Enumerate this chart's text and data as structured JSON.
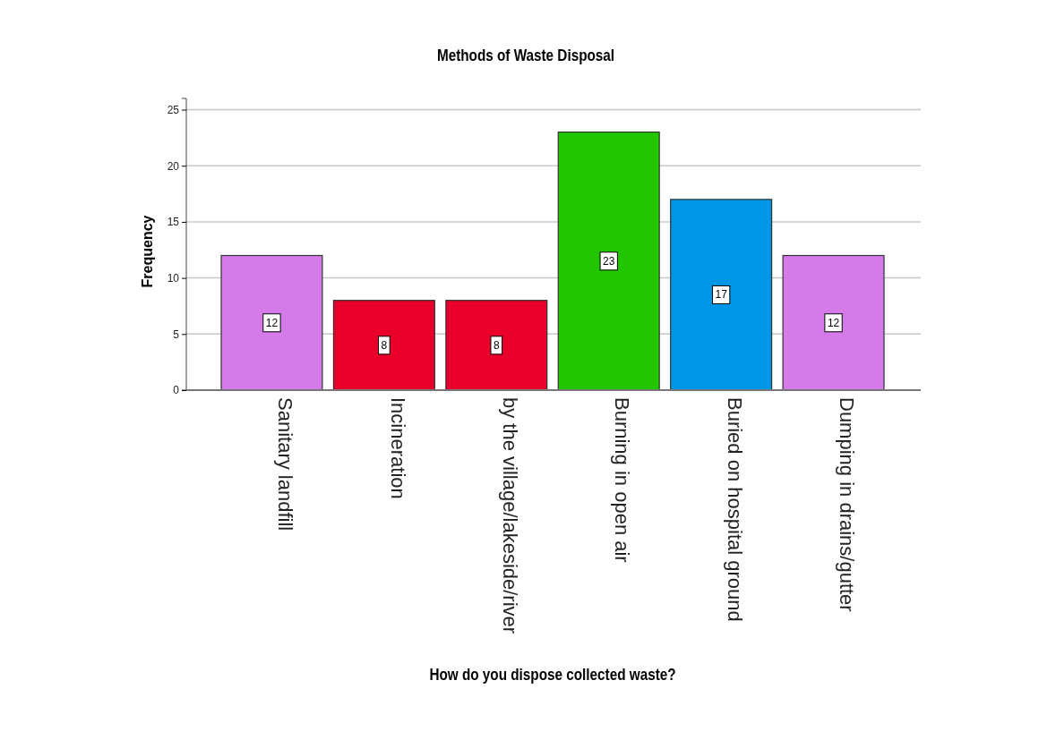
{
  "chart_data": {
    "type": "bar",
    "title": "Methods of Waste Disposal",
    "xlabel": "How do you dispose collected waste?",
    "ylabel": "Frequency",
    "categories": [
      "Sanitary landfill",
      "Incineration",
      "by the village/lakeside/river",
      "Burning in open air",
      "Buried on hospital ground",
      "Dumping in drains/gutter"
    ],
    "values": [
      12,
      8,
      8,
      23,
      17,
      12
    ],
    "colors": [
      "#d57be9",
      "#e8002a",
      "#e8002a",
      "#22c600",
      "#0096e6",
      "#d57be9"
    ],
    "ylim": [
      0,
      26
    ],
    "yticks": [
      0,
      5,
      10,
      15,
      20,
      25
    ],
    "grid": "y",
    "data_labels": true
  }
}
